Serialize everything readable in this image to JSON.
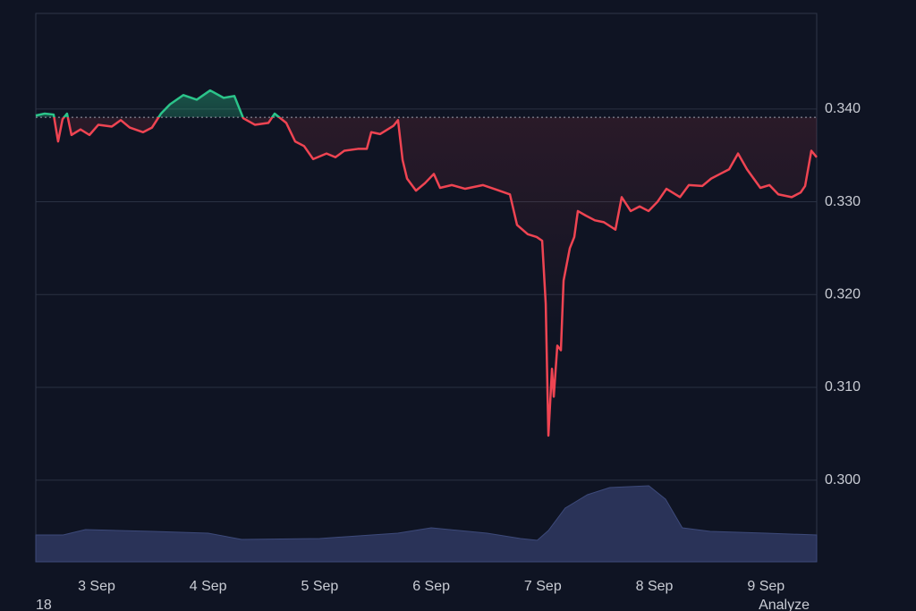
{
  "chart_data": {
    "type": "line",
    "x": [
      2.455,
      2.535,
      2.615,
      2.655,
      2.695,
      2.735,
      2.775,
      2.856,
      2.936,
      3.016,
      3.136,
      3.217,
      3.297,
      3.417,
      3.497,
      3.577,
      3.658,
      3.778,
      3.898,
      4.018,
      4.139,
      4.235,
      4.315,
      4.419,
      4.54,
      4.596,
      4.7,
      4.78,
      4.86,
      4.941,
      5.061,
      5.141,
      5.221,
      5.342,
      5.422,
      5.462,
      5.542,
      5.662,
      5.702,
      5.743,
      5.783,
      5.863,
      5.943,
      6.023,
      6.079,
      6.184,
      6.304,
      6.464,
      6.585,
      6.705,
      6.769,
      6.865,
      6.945,
      6.994,
      7.026,
      7.05,
      7.082,
      7.098,
      7.13,
      7.162,
      7.186,
      7.242,
      7.282,
      7.314,
      7.387,
      7.467,
      7.547,
      7.651,
      7.707,
      7.788,
      7.868,
      7.948,
      8.028,
      8.108,
      8.229,
      8.309,
      8.429,
      8.509,
      8.589,
      8.67,
      8.75,
      8.83,
      8.95,
      9.031,
      9.111,
      9.231,
      9.311,
      9.351,
      9.407,
      9.455
    ],
    "series": [
      {
        "color": "#ef4452",
        "above_color": "#2bc48a",
        "values": [
          0.3393,
          0.3395,
          0.3394,
          0.3365,
          0.3389,
          0.3395,
          0.3372,
          0.3378,
          0.3372,
          0.3383,
          0.3381,
          0.3388,
          0.338,
          0.3375,
          0.338,
          0.3395,
          0.3405,
          0.3415,
          0.341,
          0.342,
          0.3412,
          0.3414,
          0.339,
          0.3383,
          0.3385,
          0.3395,
          0.3385,
          0.3365,
          0.336,
          0.3346,
          0.3352,
          0.3348,
          0.3355,
          0.3357,
          0.3357,
          0.3375,
          0.3373,
          0.3382,
          0.3388,
          0.3345,
          0.3325,
          0.3312,
          0.332,
          0.333,
          0.3315,
          0.3318,
          0.3314,
          0.3318,
          0.3313,
          0.3308,
          0.3275,
          0.3265,
          0.3262,
          0.3258,
          0.319,
          0.3048,
          0.312,
          0.309,
          0.3145,
          0.314,
          0.3215,
          0.325,
          0.3262,
          0.329,
          0.3285,
          0.328,
          0.3278,
          0.327,
          0.3305,
          0.329,
          0.3295,
          0.329,
          0.33,
          0.3314,
          0.3305,
          0.3318,
          0.3317,
          0.3325,
          0.333,
          0.3335,
          0.3352,
          0.3335,
          0.3315,
          0.3318,
          0.3308,
          0.3305,
          0.331,
          0.3317,
          0.3355,
          0.3348
        ]
      }
    ],
    "baseline": 0.3391,
    "volume": {
      "color": "#2a3358",
      "x": [
        2.455,
        2.7,
        2.9,
        3.5,
        4.0,
        4.3,
        5.0,
        5.7,
        6.0,
        6.5,
        6.8,
        6.95,
        7.05,
        7.2,
        7.4,
        7.6,
        7.95,
        8.1,
        8.25,
        8.5,
        9.0,
        9.455
      ],
      "values": [
        30,
        30,
        36,
        34,
        32,
        25,
        26,
        32,
        38,
        32,
        26,
        24,
        35,
        60,
        75,
        83,
        85,
        70,
        38,
        34,
        32,
        30
      ],
      "lim": [
        0,
        100
      ]
    },
    "xlim": [
      2.455,
      9.455
    ],
    "xticks": [
      {
        "value": 3,
        "label": "3 Sep"
      },
      {
        "value": 4,
        "label": "4 Sep"
      },
      {
        "value": 5,
        "label": "5 Sep"
      },
      {
        "value": 6,
        "label": "6 Sep"
      },
      {
        "value": 7,
        "label": "7 Sep"
      },
      {
        "value": 8,
        "label": "8 Sep"
      },
      {
        "value": 9,
        "label": "9 Sep"
      }
    ],
    "ylim": [
      0.2912,
      0.3503
    ],
    "yticks": [
      {
        "value": 0.3,
        "label": "0.300"
      },
      {
        "value": 0.31,
        "label": "0.310"
      },
      {
        "value": 0.32,
        "label": "0.320"
      },
      {
        "value": 0.33,
        "label": "0.330"
      },
      {
        "value": 0.34,
        "label": "0.340"
      }
    ],
    "grid": true,
    "footer_left": "18",
    "footer_right": "Analyze"
  }
}
